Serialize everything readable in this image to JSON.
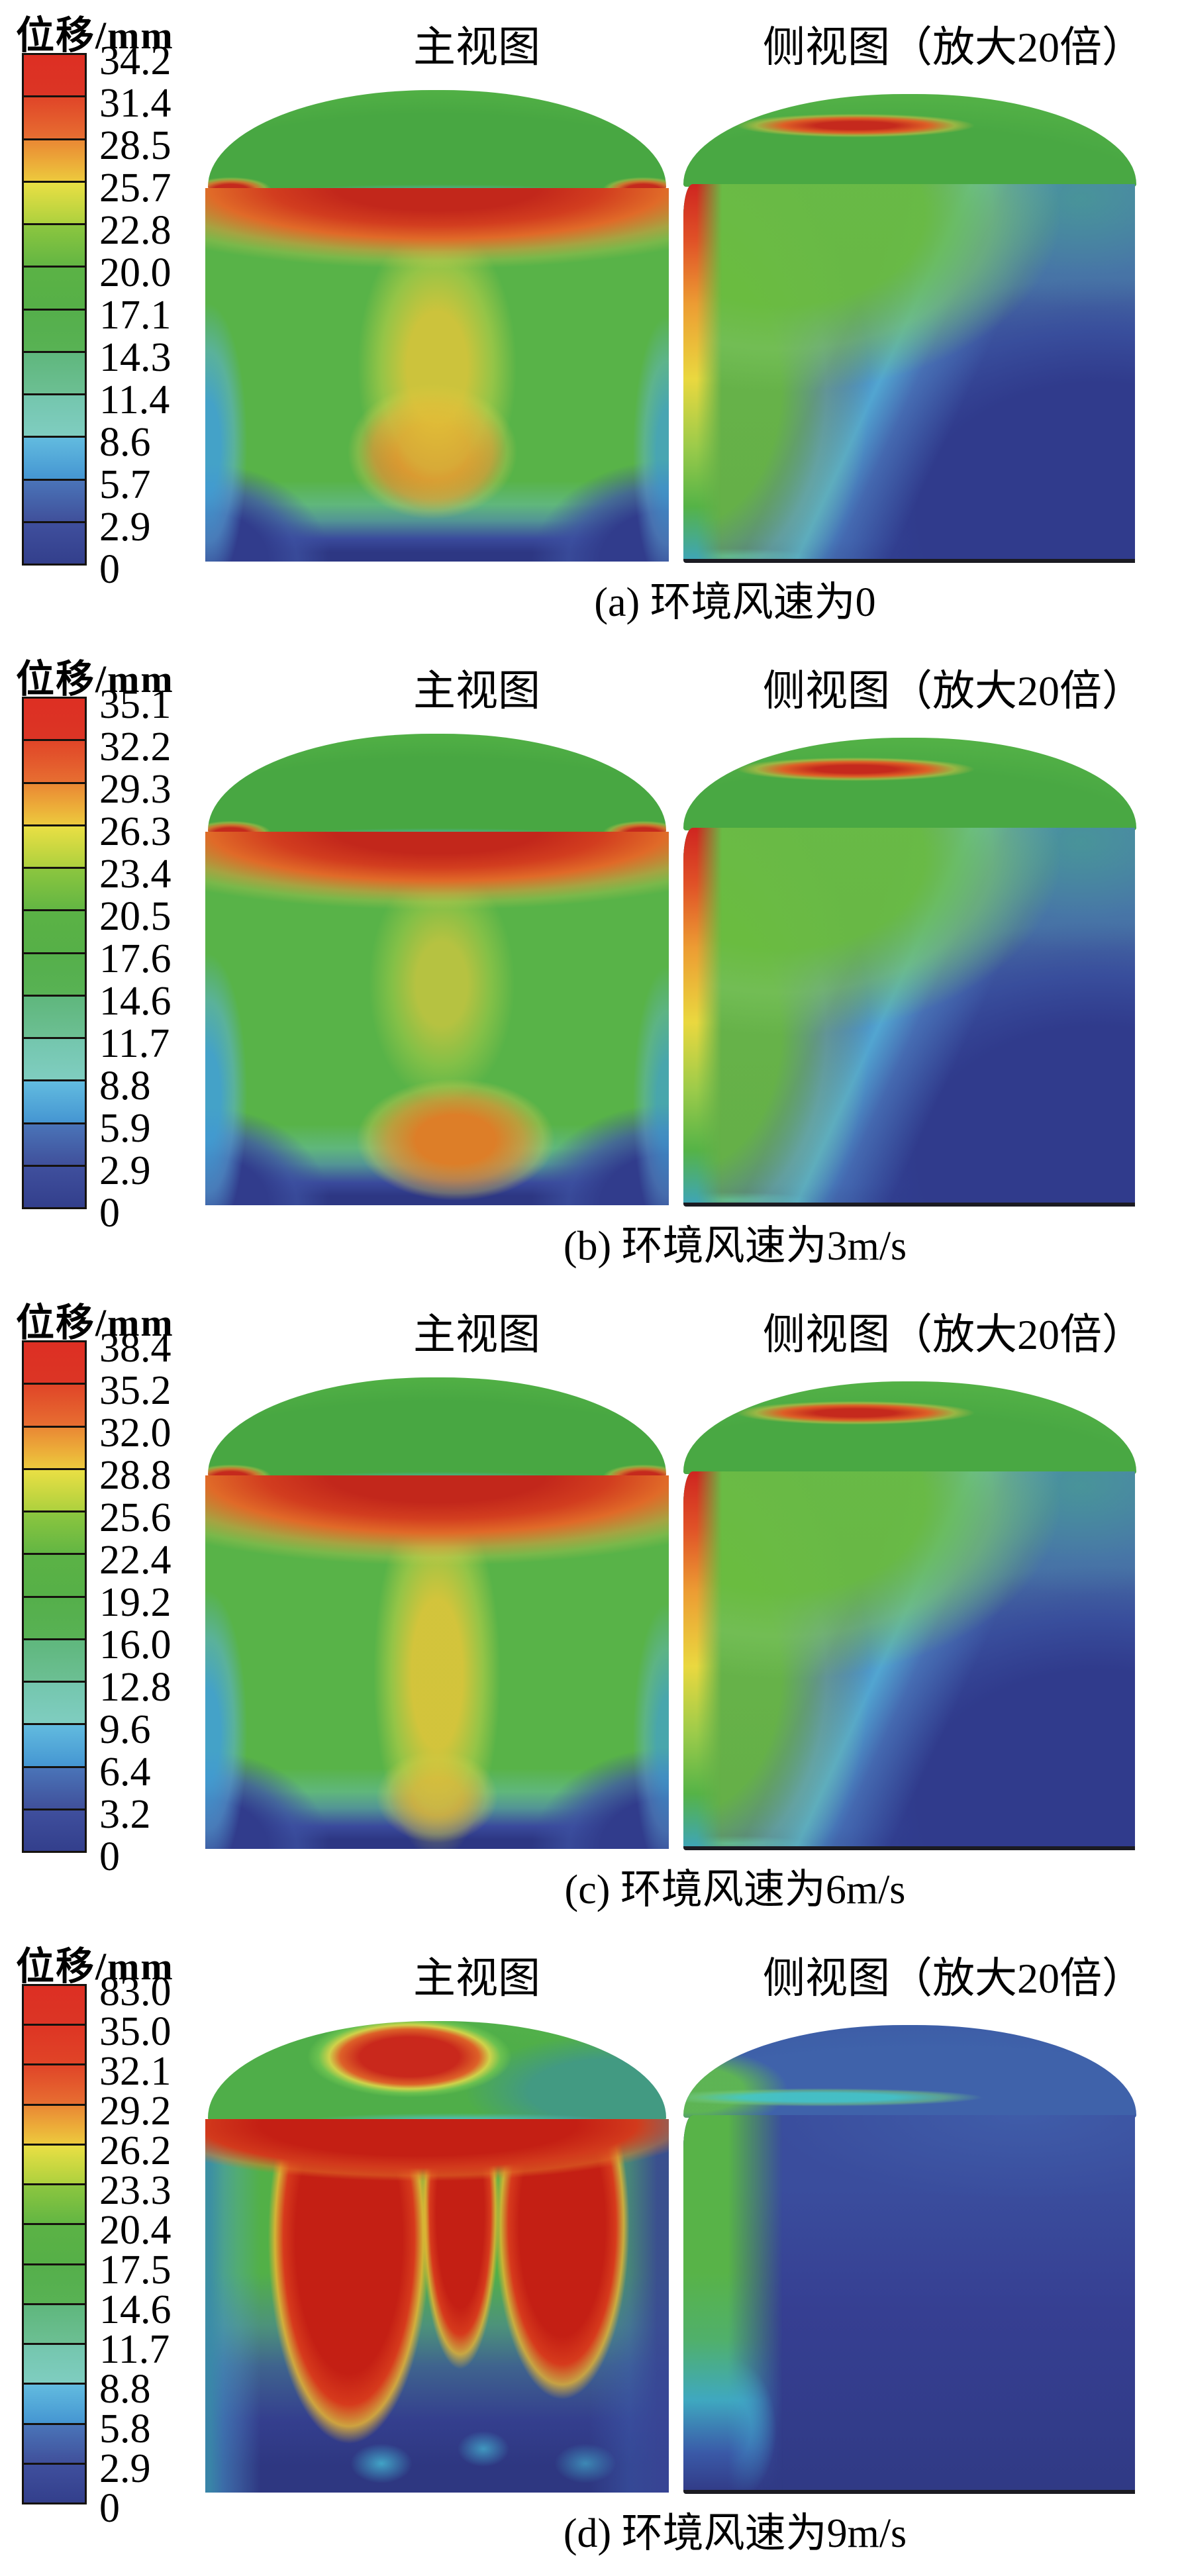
{
  "figure": {
    "colorbar_label": "位移/mm",
    "main_view_title": "主视图",
    "side_view_title": "侧视图（放大20倍）"
  },
  "palette": {
    "segments12": [
      [
        "#dd2f23",
        "#dc3525"
      ],
      [
        "#e04528",
        "#e76e31"
      ],
      [
        "#ea8834",
        "#edc93d"
      ],
      [
        "#eadf44",
        "#aed13e"
      ],
      [
        "#8cc63f",
        "#63b643"
      ],
      [
        "#5bb246",
        "#56b047"
      ],
      [
        "#55af4b",
        "#58b254"
      ],
      [
        "#5fb77d",
        "#6cbf93"
      ],
      [
        "#74c6ad",
        "#7fcdc0"
      ],
      [
        "#62bbdf",
        "#4596d2"
      ],
      [
        "#4a74b8",
        "#40509b"
      ],
      [
        "#3f4f9d",
        "#333f8c"
      ]
    ],
    "segments13": [
      [
        "#dd2f23",
        "#dc3525"
      ],
      [
        "#de3524",
        "#e04427"
      ],
      [
        "#e04528",
        "#e76e31"
      ],
      [
        "#ea8834",
        "#edc93d"
      ],
      [
        "#eadf44",
        "#aed13e"
      ],
      [
        "#8cc63f",
        "#63b643"
      ],
      [
        "#5bb246",
        "#56b047"
      ],
      [
        "#55af4b",
        "#58b254"
      ],
      [
        "#5fb77d",
        "#6cbf93"
      ],
      [
        "#74c6ad",
        "#7fcdc0"
      ],
      [
        "#62bbdf",
        "#4596d2"
      ],
      [
        "#4a74b8",
        "#40509b"
      ],
      [
        "#3f4f9d",
        "#333f8c"
      ]
    ]
  },
  "panels": [
    {
      "id": "a",
      "caption": "(a) 环境风速为0",
      "ticks": [
        "34.2",
        "31.4",
        "28.5",
        "25.7",
        "22.8",
        "20.0",
        "17.1",
        "14.3",
        "11.4",
        "8.6",
        "5.7",
        "2.9",
        "0"
      ]
    },
    {
      "id": "b",
      "caption": "(b) 环境风速为3m/s",
      "ticks": [
        "35.1",
        "32.2",
        "29.3",
        "26.3",
        "23.4",
        "20.5",
        "17.6",
        "14.6",
        "11.7",
        "8.8",
        "5.9",
        "2.9",
        "0"
      ]
    },
    {
      "id": "c",
      "caption": "(c) 环境风速为6m/s",
      "ticks": [
        "38.4",
        "35.2",
        "32.0",
        "28.8",
        "25.6",
        "22.4",
        "19.2",
        "16.0",
        "12.8",
        "9.6",
        "6.4",
        "3.2",
        "0"
      ]
    },
    {
      "id": "d",
      "caption": "(d) 环境风速为9m/s",
      "ticks": [
        "83.0",
        "35.0",
        "32.1",
        "29.2",
        "26.2",
        "23.3",
        "20.4",
        "17.5",
        "14.6",
        "11.7",
        "8.8",
        "5.8",
        "2.9",
        "0"
      ]
    }
  ],
  "chart_data": [
    {
      "type": "heatmap",
      "panel": "a",
      "title": "(a) 环境风速为0",
      "views": [
        "主视图",
        "侧视图（放大20倍）"
      ],
      "colorbar_label": "位移/mm",
      "unit": "mm",
      "scale_ticks": [
        34.2,
        31.4,
        28.5,
        25.7,
        22.8,
        20.0,
        17.1,
        14.3,
        11.4,
        8.6,
        5.7,
        2.9,
        0
      ],
      "scale_range": [
        0,
        34.2
      ],
      "max_displacement_mm": 34.2,
      "colormap": "jet-like red(max) to dark-blue(0), 12 discrete bands"
    },
    {
      "type": "heatmap",
      "panel": "b",
      "title": "(b) 环境风速为3m/s",
      "views": [
        "主视图",
        "侧视图（放大20倍）"
      ],
      "colorbar_label": "位移/mm",
      "unit": "mm",
      "scale_ticks": [
        35.1,
        32.2,
        29.3,
        26.3,
        23.4,
        20.5,
        17.6,
        14.6,
        11.7,
        8.8,
        5.9,
        2.9,
        0
      ],
      "scale_range": [
        0,
        35.1
      ],
      "max_displacement_mm": 35.1,
      "colormap": "jet-like red(max) to dark-blue(0), 12 discrete bands"
    },
    {
      "type": "heatmap",
      "panel": "c",
      "title": "(c) 环境风速为6m/s",
      "views": [
        "主视图",
        "侧视图（放大20倍）"
      ],
      "colorbar_label": "位移/mm",
      "unit": "mm",
      "scale_ticks": [
        38.4,
        35.2,
        32.0,
        28.8,
        25.6,
        22.4,
        19.2,
        16.0,
        12.8,
        9.6,
        6.4,
        3.2,
        0
      ],
      "scale_range": [
        0,
        38.4
      ],
      "max_displacement_mm": 38.4,
      "colormap": "jet-like red(max) to dark-blue(0), 12 discrete bands"
    },
    {
      "type": "heatmap",
      "panel": "d",
      "title": "(d) 环境风速为9m/s",
      "views": [
        "主视图",
        "侧视图（放大20倍）"
      ],
      "colorbar_label": "位移/mm",
      "unit": "mm",
      "scale_ticks": [
        83.0,
        35.0,
        32.1,
        29.2,
        26.2,
        23.3,
        20.4,
        17.5,
        14.6,
        11.7,
        8.8,
        5.8,
        2.9,
        0
      ],
      "scale_range": [
        0,
        83.0
      ],
      "max_displacement_mm": 83.0,
      "colormap": "jet-like red(max) to dark-blue(0), 13 discrete bands"
    }
  ]
}
